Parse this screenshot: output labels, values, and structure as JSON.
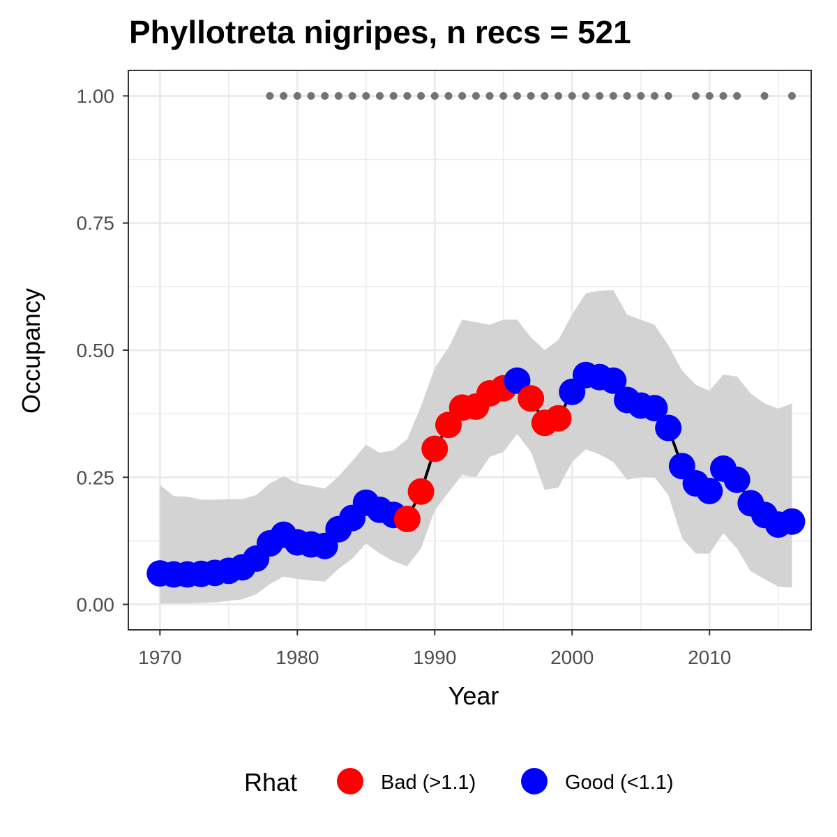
{
  "chart_data": {
    "type": "line",
    "title": "Phyllotreta nigripes, n recs = 521",
    "xlabel": "Year",
    "ylabel": "Occupancy",
    "xlim": [
      1967.7,
      2017.4
    ],
    "ylim": [
      -0.05,
      1.05
    ],
    "xticks": [
      1970,
      1980,
      1990,
      2000,
      2010
    ],
    "xtick_labels": [
      "1970",
      "1980",
      "1990",
      "2000",
      "2010"
    ],
    "yticks": [
      0,
      0.25,
      0.5,
      0.75,
      1
    ],
    "ytick_labels": [
      "0.00",
      "0.25",
      "0.50",
      "0.75",
      "1.00"
    ],
    "grid": true,
    "legend": {
      "title": "Rhat",
      "position": "bottom",
      "entries": [
        {
          "label": "Bad (>1.1)",
          "color": "#ff0000"
        },
        {
          "label": "Good (<1.1)",
          "color": "#0000ff"
        }
      ]
    },
    "x": [
      1970,
      1971,
      1972,
      1973,
      1974,
      1975,
      1976,
      1977,
      1978,
      1979,
      1980,
      1981,
      1982,
      1983,
      1984,
      1985,
      1986,
      1987,
      1988,
      1989,
      1990,
      1991,
      1992,
      1993,
      1994,
      1995,
      1996,
      1997,
      1998,
      1999,
      2000,
      2001,
      2002,
      2003,
      2004,
      2005,
      2006,
      2007,
      2008,
      2009,
      2010,
      2011,
      2012,
      2013,
      2014,
      2015,
      2016
    ],
    "occupancy": [
      0.061,
      0.059,
      0.059,
      0.06,
      0.062,
      0.066,
      0.073,
      0.09,
      0.12,
      0.137,
      0.122,
      0.118,
      0.115,
      0.148,
      0.17,
      0.2,
      0.186,
      0.176,
      0.168,
      0.222,
      0.306,
      0.353,
      0.387,
      0.389,
      0.415,
      0.425,
      0.44,
      0.405,
      0.357,
      0.366,
      0.418,
      0.451,
      0.447,
      0.44,
      0.402,
      0.391,
      0.386,
      0.347,
      0.272,
      0.238,
      0.223,
      0.267,
      0.245,
      0.199,
      0.176,
      0.157,
      0.163
    ],
    "lower": [
      0.002,
      0.002,
      0.002,
      0.003,
      0.004,
      0.007,
      0.01,
      0.02,
      0.04,
      0.055,
      0.05,
      0.047,
      0.045,
      0.07,
      0.09,
      0.12,
      0.1,
      0.085,
      0.075,
      0.11,
      0.185,
      0.22,
      0.255,
      0.25,
      0.29,
      0.3,
      0.335,
      0.3,
      0.225,
      0.23,
      0.28,
      0.305,
      0.295,
      0.28,
      0.245,
      0.25,
      0.25,
      0.215,
      0.13,
      0.1,
      0.1,
      0.14,
      0.11,
      0.065,
      0.05,
      0.035,
      0.033
    ],
    "upper": [
      0.235,
      0.213,
      0.212,
      0.206,
      0.206,
      0.207,
      0.207,
      0.215,
      0.238,
      0.252,
      0.238,
      0.233,
      0.228,
      0.252,
      0.282,
      0.314,
      0.298,
      0.303,
      0.325,
      0.39,
      0.465,
      0.505,
      0.56,
      0.555,
      0.55,
      0.56,
      0.56,
      0.525,
      0.5,
      0.52,
      0.57,
      0.612,
      0.617,
      0.618,
      0.57,
      0.56,
      0.55,
      0.51,
      0.46,
      0.432,
      0.42,
      0.452,
      0.448,
      0.415,
      0.395,
      0.385,
      0.395
    ],
    "rhat": [
      "Good",
      "Good",
      "Good",
      "Good",
      "Good",
      "Good",
      "Good",
      "Good",
      "Good",
      "Good",
      "Good",
      "Good",
      "Good",
      "Good",
      "Good",
      "Good",
      "Good",
      "Good",
      "Bad",
      "Bad",
      "Bad",
      "Bad",
      "Bad",
      "Bad",
      "Bad",
      "Bad",
      "Good",
      "Bad",
      "Bad",
      "Bad",
      "Good",
      "Good",
      "Good",
      "Good",
      "Good",
      "Good",
      "Good",
      "Good",
      "Good",
      "Good",
      "Good",
      "Good",
      "Good",
      "Good",
      "Good",
      "Good",
      "Good"
    ],
    "record_years": [
      1978,
      1979,
      1980,
      1981,
      1982,
      1983,
      1984,
      1985,
      1986,
      1987,
      1988,
      1989,
      1990,
      1991,
      1992,
      1993,
      1994,
      1995,
      1996,
      1997,
      1998,
      1999,
      2000,
      2001,
      2002,
      2003,
      2004,
      2005,
      2006,
      2007,
      2009,
      2010,
      2011,
      2012,
      2014,
      2016
    ],
    "record_level": 1.0,
    "colors": {
      "bad": "#ff0000",
      "good": "#0000ff",
      "ribbon": "#d3d3d3",
      "line": "#000000",
      "records": "#737373",
      "grid": "#ebebeb",
      "panel_border": "#333333"
    }
  }
}
